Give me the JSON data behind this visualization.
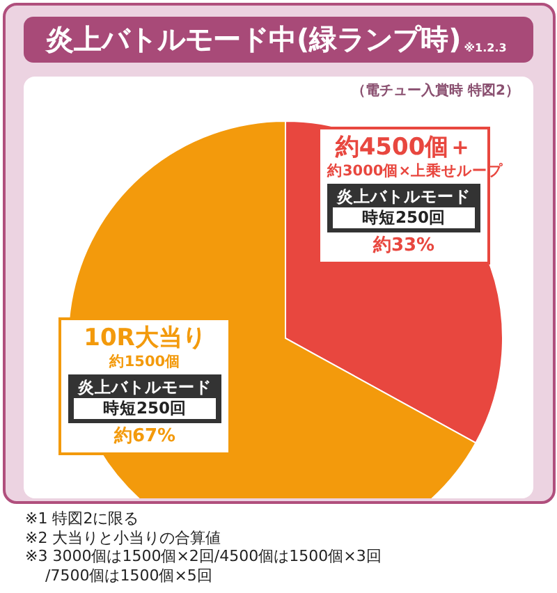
{
  "chart_data": {
    "type": "pie",
    "title": "炎上バトルモード中(緑ランプ時)",
    "subtitle": "（電チュー入賞時 特図2）",
    "categories": [
      "約4500個＋",
      "10R大当り"
    ],
    "values": [
      33,
      67
    ],
    "colors": [
      "#e8473f",
      "#f39a0c"
    ],
    "value_labels": [
      "約33%",
      "約67%"
    ],
    "annotations": [
      "※1.2.3",
      {
        "text": "約3000個×上乗せループ",
        "x": "約4500個＋"
      },
      {
        "text": "炎上バトルモード",
        "x": "約4500個＋"
      },
      {
        "text": "時短250回",
        "x": "約4500個＋"
      },
      {
        "text": "約1500個",
        "x": "10R大当り"
      },
      {
        "text": "炎上バトルモード",
        "x": "10R大当り"
      },
      {
        "text": "時短250回",
        "x": "10R大当り"
      },
      "※1 特図2に限る",
      "※2 大当りと小当りの合算値",
      "※3 3000個は1500個×2回/4500個は1500個×3回",
      "　 /7500個は1500個×5回"
    ]
  }
}
